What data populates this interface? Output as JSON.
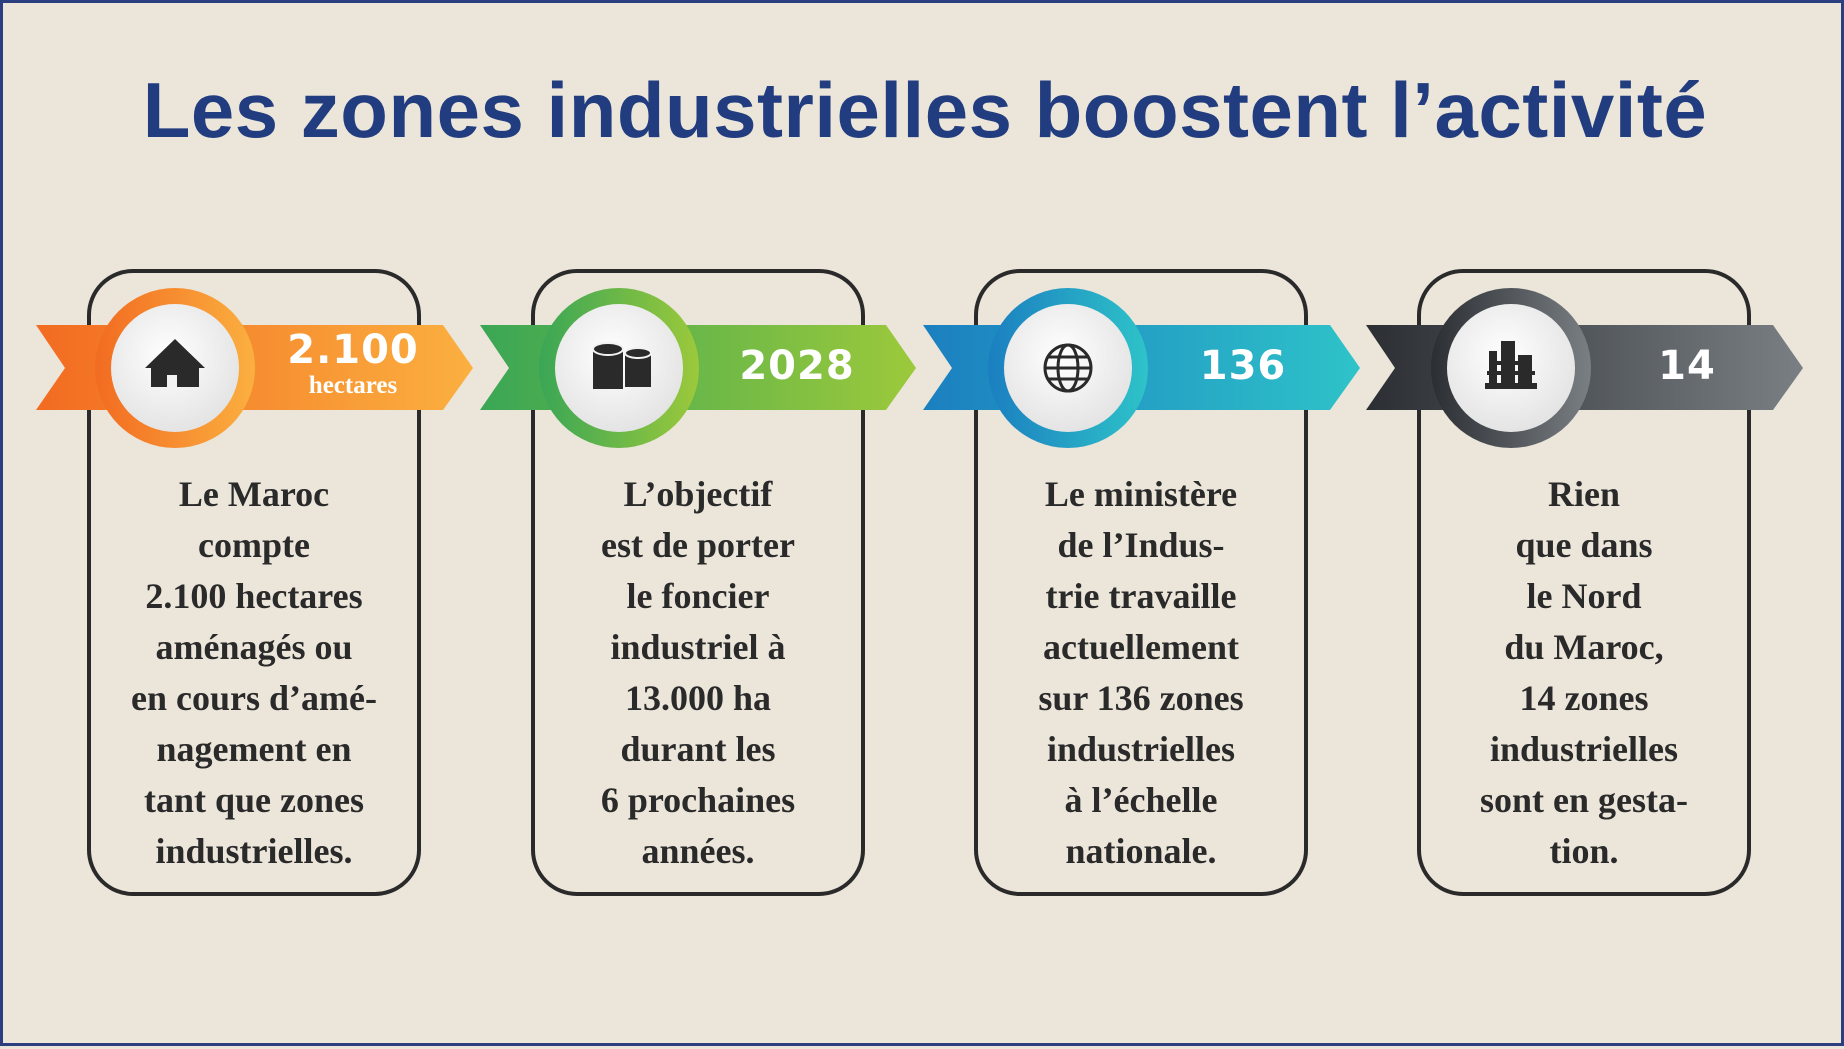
{
  "title": "Les zones industrielles boostent l’activité",
  "colors": {
    "title": "#213c7f",
    "border": "#2b3f80",
    "background": "#ebe5da",
    "card_border": "#2a2a2a"
  },
  "cards": [
    {
      "icon": "house-icon",
      "value": "2.100",
      "unit": "hectares",
      "accent": "#f7941d",
      "text": "Le Maroc\ncompte\n2.100 hectares\naménagés ou\nen cours d’amé-\nnagement en\ntant que zones\nindustrielles."
    },
    {
      "icon": "storage-tanks-icon",
      "value": "2028",
      "unit": "",
      "accent": "#6abf47",
      "text": "L’objectif\nest de porter\nle foncier\nindustriel à\n13.000 ha\ndurant les\n6 prochaines\nannées."
    },
    {
      "icon": "globe-icon",
      "value": "136",
      "unit": "",
      "accent": "#1ba6c9",
      "text": "Le ministère\nde l’Indus-\ntrie travaille\nactuellement\nsur 136 zones\nindustrielles\nà l’échelle\nnationale."
    },
    {
      "icon": "factory-icon",
      "value": "14",
      "unit": "",
      "accent": "#4f5457",
      "text": "Rien\nque dans\nle Nord\ndu Maroc,\n14 zones\nindustrielles\nsont en gesta-\ntion."
    }
  ]
}
